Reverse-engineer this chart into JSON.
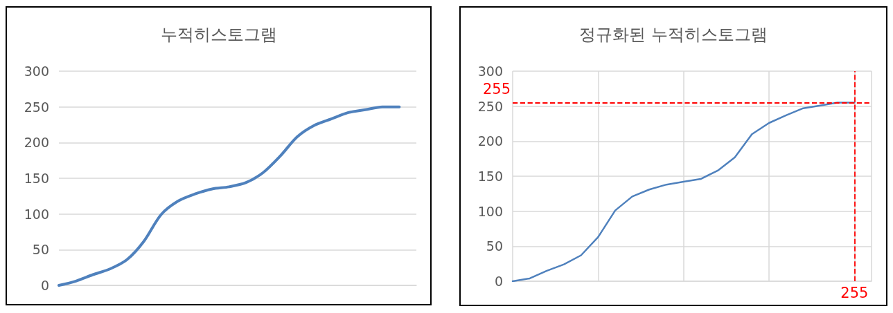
{
  "chart_data": [
    {
      "type": "line",
      "title": "누적히스토그램",
      "categories": [
        null,
        null,
        null,
        null,
        null,
        null,
        null,
        null,
        null,
        null,
        null,
        null,
        null,
        null,
        null,
        null,
        null,
        null,
        null,
        null,
        null,
        null
      ],
      "series": [
        {
          "color": "#4f81bd",
          "values": [
            0,
            6,
            15,
            23,
            36,
            62,
            99,
            118,
            128,
            135,
            138,
            144,
            158,
            181,
            208,
            224,
            233,
            242,
            246,
            250,
            250,
            null
          ]
        }
      ],
      "ylim": [
        0,
        300
      ],
      "yticks": [
        0,
        50,
        100,
        150,
        200,
        250,
        300
      ],
      "grid": "y",
      "marker": "none"
    },
    {
      "type": "line",
      "title": "정규화된 누적히스토그램",
      "categories": [
        null,
        null,
        null,
        null,
        null,
        null,
        null,
        null,
        null,
        null,
        null,
        null,
        null,
        null,
        null,
        null,
        null,
        null,
        null,
        null,
        "255",
        null
      ],
      "series": [
        {
          "color": "#4f81bd",
          "values": [
            0,
            4,
            15,
            24,
            37,
            63,
            101,
            121,
            131,
            138,
            142,
            146,
            158,
            177,
            210,
            226,
            237,
            247,
            251,
            255,
            255,
            null
          ]
        }
      ],
      "ylim": [
        0,
        300
      ],
      "yticks": [
        0,
        50,
        100,
        150,
        200,
        250,
        300
      ],
      "grid": true,
      "marker": "none",
      "ref_lines": [
        {
          "axis": "y",
          "value": 255,
          "label": "255",
          "color": "#ff0000",
          "line_style": "dashed"
        },
        {
          "axis": "x",
          "value": "255",
          "color": "#ff0000",
          "line_style": "dashed"
        }
      ]
    }
  ]
}
